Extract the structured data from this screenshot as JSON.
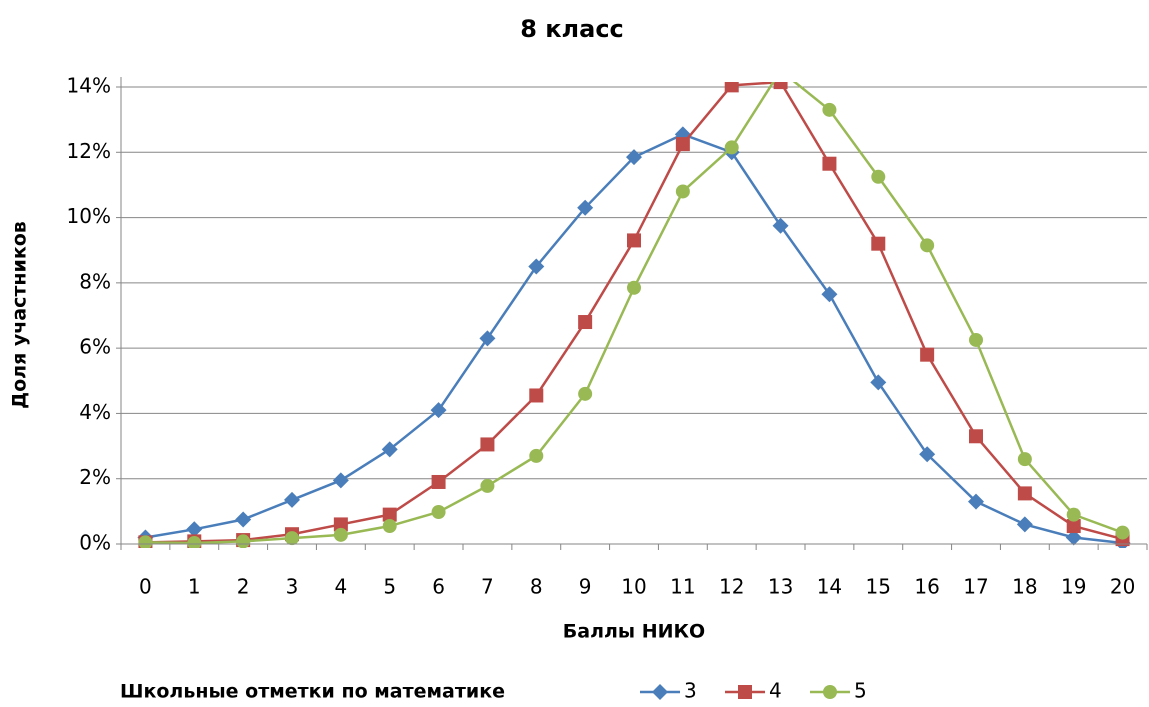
{
  "chart_data": {
    "type": "line",
    "title": "8 класс",
    "x_label": "Баллы НИКО",
    "y_label": "Доля участников",
    "legend_title": "Школьные отметки по математике",
    "categories": [
      "0",
      "1",
      "2",
      "3",
      "4",
      "5",
      "6",
      "7",
      "8",
      "9",
      "10",
      "11",
      "12",
      "13",
      "14",
      "15",
      "16",
      "17",
      "18",
      "19",
      "20"
    ],
    "series": [
      {
        "name": "3",
        "color": "#4a7ebb",
        "marker": "diamond",
        "values": [
          0.2,
          0.45,
          0.75,
          1.35,
          1.95,
          2.9,
          4.1,
          6.3,
          8.5,
          10.3,
          11.85,
          12.55,
          12.0,
          9.75,
          7.65,
          4.95,
          2.75,
          1.3,
          0.6,
          0.2,
          0.03
        ]
      },
      {
        "name": "4",
        "color": "#be4b48",
        "marker": "square",
        "values": [
          0.05,
          0.08,
          0.12,
          0.3,
          0.6,
          0.9,
          1.9,
          3.05,
          4.55,
          6.8,
          9.3,
          12.25,
          14.05,
          14.15,
          11.65,
          9.2,
          5.8,
          3.3,
          1.55,
          0.55,
          0.15
        ]
      },
      {
        "name": "5",
        "color": "#98b954",
        "marker": "circle",
        "values": [
          0.05,
          0.03,
          0.08,
          0.18,
          0.28,
          0.55,
          0.98,
          1.78,
          2.7,
          4.6,
          7.85,
          10.8,
          12.15,
          14.5,
          13.3,
          11.25,
          9.15,
          6.25,
          2.6,
          0.9,
          0.35
        ]
      }
    ],
    "ylim": [
      0,
      14
    ],
    "yticks": [
      {
        "value": 0,
        "label": "0%"
      },
      {
        "value": 2,
        "label": "2%"
      },
      {
        "value": 4,
        "label": "4%"
      },
      {
        "value": 6,
        "label": "6%"
      },
      {
        "value": 8,
        "label": "8%"
      },
      {
        "value": 10,
        "label": "10%"
      },
      {
        "value": 12,
        "label": "12%"
      },
      {
        "value": 14,
        "label": "14%"
      }
    ],
    "grid": true,
    "legend": "bottom"
  }
}
